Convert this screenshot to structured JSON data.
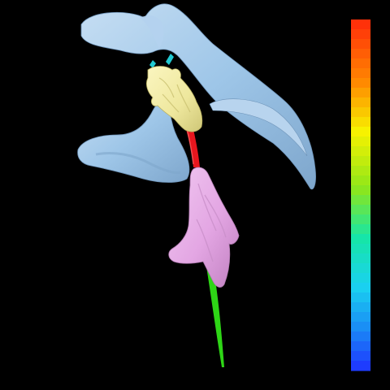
{
  "scene": {
    "background_color": "#000000",
    "structures": [
      {
        "name": "ventricle-structure",
        "color": "#9ec6e8"
      },
      {
        "name": "yellow-structure",
        "color": "#eee79d"
      },
      {
        "name": "red-tract-segment",
        "color": "#e8161e"
      },
      {
        "name": "pink-structure",
        "color": "#e3a6e3"
      },
      {
        "name": "green-tract-segment",
        "color": "#2ed616"
      },
      {
        "name": "cyan-fragment",
        "color": "#21c9d2"
      }
    ]
  },
  "colorbar": {
    "orientation": "vertical",
    "top_color": "#ff1e00",
    "bottom_color": "#1e3cff",
    "stops": [
      {
        "offset": 0.0,
        "color": "#ff2a0a"
      },
      {
        "offset": 0.18,
        "color": "#ff8a00"
      },
      {
        "offset": 0.32,
        "color": "#f7f200"
      },
      {
        "offset": 0.48,
        "color": "#8ee61a"
      },
      {
        "offset": 0.62,
        "color": "#16e6a6"
      },
      {
        "offset": 0.76,
        "color": "#1ad2f0"
      },
      {
        "offset": 0.88,
        "color": "#1a8cf5"
      },
      {
        "offset": 1.0,
        "color": "#1e32ff"
      }
    ],
    "band_count": 36
  }
}
